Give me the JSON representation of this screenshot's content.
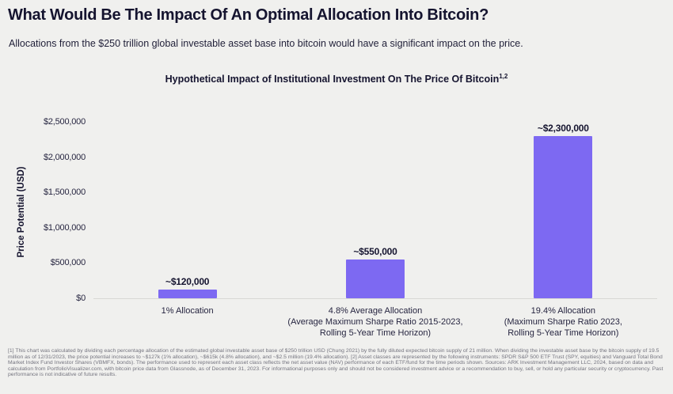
{
  "header": {
    "title": "What Would Be The Impact Of An Optimal Allocation Into Bitcoin?",
    "subtitle": "Allocations from the $250 trillion global investable asset base into bitcoin would have a significant impact on the price."
  },
  "chart_data": {
    "type": "bar",
    "title": "Hypothetical Impact of Institutional Investment On The Price Of Bitcoin",
    "title_superscript": "1,2",
    "xlabel": "",
    "ylabel": "Price Potential (USD)",
    "ylim": [
      0,
      2500000
    ],
    "grid": false,
    "legend": false,
    "bar_color": "#7d69f2",
    "y_ticks": [
      {
        "value": 2500000,
        "label": "$2,500,000"
      },
      {
        "value": 2000000,
        "label": "$2,000,000"
      },
      {
        "value": 1500000,
        "label": "$1,500,000"
      },
      {
        "value": 1000000,
        "label": "$1,000,000"
      },
      {
        "value": 500000,
        "label": "$500,000"
      },
      {
        "value": 0,
        "label": "$0"
      }
    ],
    "bars": [
      {
        "value": 120000,
        "value_label": "~$120,000",
        "category_lines": [
          "1% Allocation"
        ]
      },
      {
        "value": 550000,
        "value_label": "~$550,000",
        "category_lines": [
          "4.8% Average Allocation",
          "(Average Maximum Sharpe Ratio 2015-2023,",
          "Rolling 5-Year Time Horizon)"
        ]
      },
      {
        "value": 2300000,
        "value_label": "~$2,300,000",
        "category_lines": [
          "19.4% Allocation",
          "(Maximum Sharpe Ratio 2023,",
          "Rolling 5-Year Time Horizon)"
        ]
      }
    ]
  },
  "footnote": "[1] This chart was calculated by dividing each percentage allocation of the estimated global investable asset base of $250 trillion USD (Chung 2021) by the fully diluted expected bitcoin supply of 21 million. When dividing the investable asset base by the bitcoin supply of 19.5 million as of 12/31/2023, the price potential increases to ~$127k (1% allocation), ~$615k (4.8% allocation), and ~$2.5 million (19.4% allocation). [2] Asset classes are represented by the following instruments: SPDR S&P 500 ETF Trust (SPY, equities) and Vanguard Total Bond Market Index Fund Investor Shares (VBMFX, bonds). The performance used to represent each asset class reflects the net asset value (NAV) performance of each ETF/fund for the time periods shown. Sources: ARK Investment Management LLC, 2024, based on data and calculation from PortfolioVisualizer.com, with bitcoin price data from Glassnode, as of December 31, 2023. For informational purposes only and should not be considered investment advice or a recommendation to buy, sell, or hold any particular security or cryptocurrency. Past performance is not indicative of future results."
}
